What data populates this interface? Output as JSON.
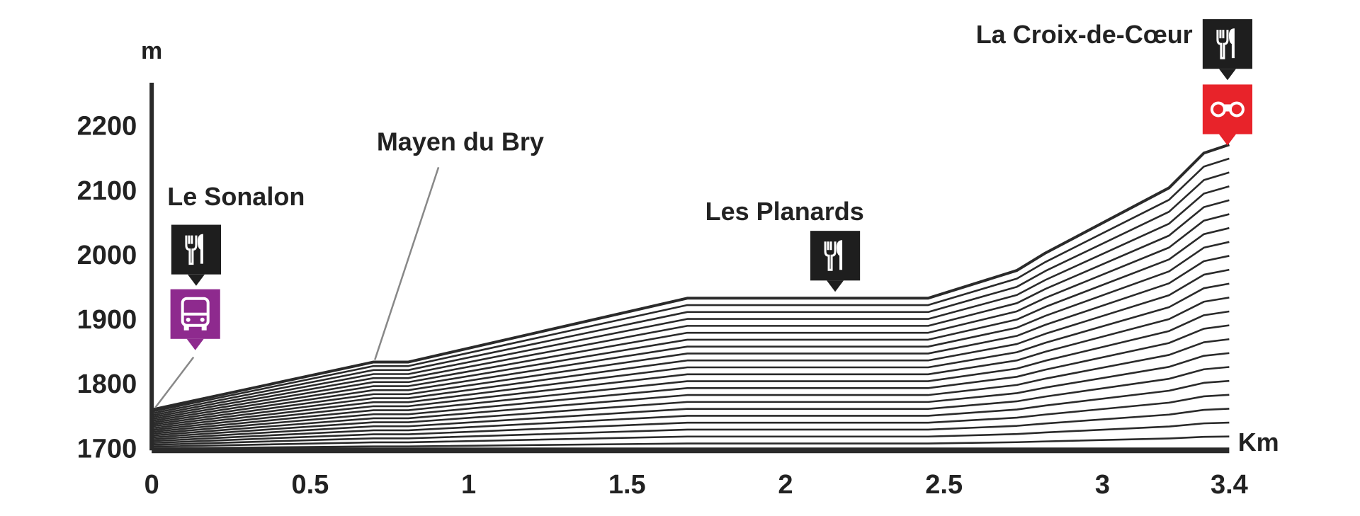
{
  "chart_data": {
    "type": "line",
    "y_label": "m",
    "x_label": "Km",
    "x": [
      0,
      0.7,
      0.81,
      1.69,
      2.45,
      2.73,
      2.82,
      3.21,
      3.32,
      3.4
    ],
    "values": [
      1763,
      1837,
      1837,
      1936,
      1936,
      1979,
      2006,
      2107,
      2161,
      2174
    ],
    "color": "#2a2a2a",
    "xlim": [
      0,
      3.4
    ],
    "ylim": [
      1700,
      2270
    ],
    "xticks": [
      0,
      0.5,
      1,
      1.5,
      2,
      2.5,
      3,
      3.4
    ],
    "yticks": [
      1700,
      1800,
      1900,
      2000,
      2100,
      2200
    ],
    "annotations": [
      "Le Sonalon",
      "Mayen du Bry",
      "Les Planards",
      "La Croix-de-Cœur"
    ]
  }
}
